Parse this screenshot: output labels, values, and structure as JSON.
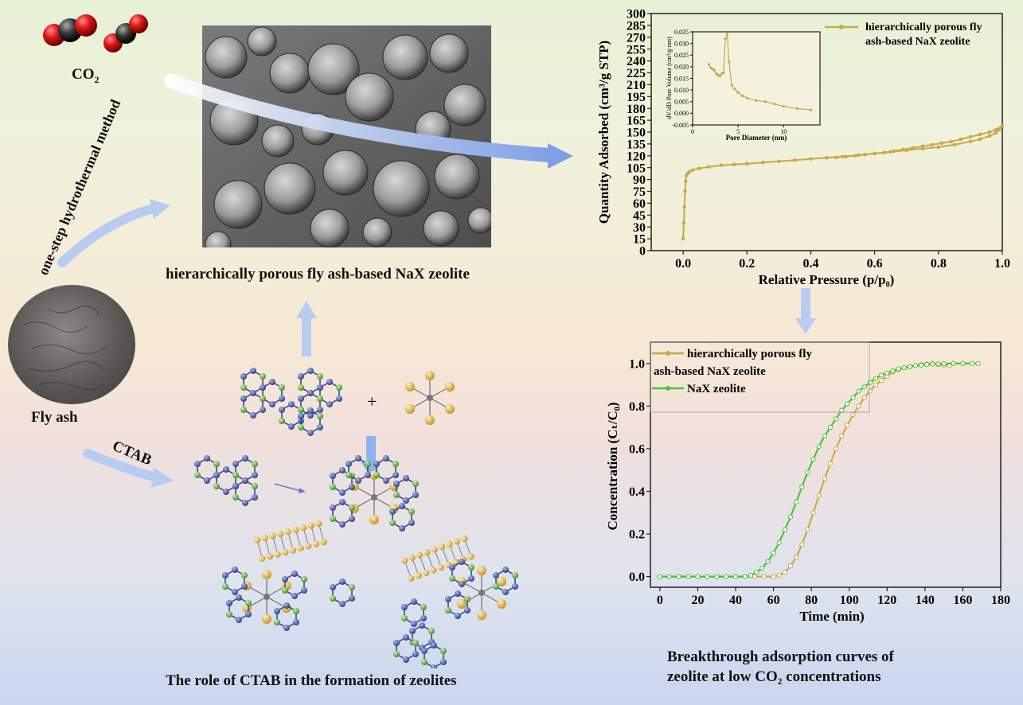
{
  "co2_label": {
    "base": "CO",
    "sub": "2"
  },
  "sem_caption": "hierarchically porous fly ash-based NaX zeolite",
  "process_label": "one-step hydrothermal method",
  "fly_ash_label": "Fly ash",
  "ctab_label": "CTAB",
  "plus_sign": "+",
  "ctab_role_caption": "The role of CTAB in the formation of zeolites",
  "breakthrough_caption": [
    "Breakthrough adsorption curves of",
    "zeolite at low CO₂ concentrations"
  ],
  "colors": {
    "gold": "#c9a94a",
    "green": "#4cc23a",
    "arrow": "#9fb9ec"
  },
  "chart_data": [
    {
      "type": "line",
      "id": "isotherm",
      "xlabel": "Relative Pressure (p/p₀)",
      "ylabel": "Quantity Adsorbed (cm³/g STP)",
      "xlim": [
        -0.1,
        1.0
      ],
      "ylim": [
        0,
        300
      ],
      "xticks": [
        0.0,
        0.2,
        0.4,
        0.6,
        0.8,
        1.0
      ],
      "xtick_labels": [
        "0.0",
        "0.2",
        "0.4",
        "0.6",
        "0.8",
        "1.0"
      ],
      "yticks": [
        0,
        15,
        30,
        45,
        60,
        75,
        90,
        105,
        120,
        135,
        150,
        165,
        180,
        195,
        210,
        225,
        240,
        255,
        270,
        285,
        300
      ],
      "ytick_labels": [
        "0",
        "15",
        "30",
        "45",
        "60",
        "75",
        "90",
        "105",
        "120",
        "135",
        "150",
        "165",
        "180",
        "195",
        "210",
        "225",
        "240",
        "255",
        "270",
        "285",
        "300"
      ],
      "legend": {
        "position": "top-right",
        "lines": [
          "hierarchically porous fly",
          "ash-based NaX zeolite"
        ]
      },
      "series": [
        {
          "name": "hierarchically porous fly ash-based NaX zeolite",
          "color": "#c9a94a",
          "x": [
            0.0,
            0.002,
            0.004,
            0.006,
            0.008,
            0.01,
            0.015,
            0.02,
            0.03,
            0.05,
            0.08,
            0.12,
            0.16,
            0.2,
            0.25,
            0.3,
            0.35,
            0.4,
            0.45,
            0.5,
            0.55,
            0.6,
            0.65,
            0.7,
            0.75,
            0.8,
            0.85,
            0.9,
            0.93,
            0.96,
            0.98,
            0.99,
            1.0
          ],
          "y": [
            15,
            35,
            55,
            75,
            88,
            95,
            98,
            100,
            102,
            104,
            106,
            108,
            109,
            110,
            111.5,
            113,
            114.5,
            116,
            117.5,
            119,
            121,
            123,
            125,
            127,
            129,
            131,
            134,
            138,
            141,
            145,
            149,
            153,
            158
          ]
        },
        {
          "name": "desorption",
          "color": "#c9a94a",
          "x": [
            1.0,
            0.98,
            0.96,
            0.93,
            0.9,
            0.87,
            0.84,
            0.81,
            0.78,
            0.75,
            0.72,
            0.69,
            0.66,
            0.63,
            0.6,
            0.57,
            0.54,
            0.51,
            0.48,
            0.45
          ],
          "y": [
            158,
            153,
            150,
            147,
            144,
            141,
            138,
            136,
            134,
            132,
            130,
            128,
            126,
            124,
            123,
            121.5,
            120,
            119,
            118,
            117.5
          ]
        }
      ]
    },
    {
      "type": "line",
      "id": "pore-inset",
      "xlabel": "Pore Diameter (nm)",
      "ylabel": "dV/dD Pore Volume (cm³/g·nm)",
      "xlim": [
        0,
        14
      ],
      "ylim": [
        -0.005,
        0.035
      ],
      "xticks": [
        0,
        5,
        10
      ],
      "xtick_labels": [
        "0",
        "5",
        "10"
      ],
      "yticks": [
        -0.005,
        0.0,
        0.005,
        0.01,
        0.015,
        0.02,
        0.025,
        0.03,
        0.035
      ],
      "ytick_labels": [
        "-0.005",
        "0.000",
        "0.005",
        "0.010",
        "0.015",
        "0.020",
        "0.025",
        "0.030",
        "0.035"
      ],
      "series": [
        {
          "name": "",
          "color": "#c9a94a",
          "x": [
            1.8,
            2.0,
            2.2,
            2.4,
            2.6,
            2.8,
            3.0,
            3.2,
            3.4,
            3.6,
            3.8,
            4.0,
            4.3,
            4.6,
            5.0,
            5.5,
            6.0,
            7.0,
            8.0,
            9.0,
            10.0,
            11.5,
            13.0
          ],
          "y": [
            0.021,
            0.0195,
            0.019,
            0.0185,
            0.017,
            0.0165,
            0.016,
            0.017,
            0.0175,
            0.032,
            0.034,
            0.022,
            0.012,
            0.0105,
            0.009,
            0.0075,
            0.0065,
            0.0055,
            0.005,
            0.004,
            0.003,
            0.002,
            0.0015
          ]
        }
      ]
    },
    {
      "type": "line",
      "id": "breakthrough",
      "xlabel": "Time (min)",
      "ylabel": "Concentration (Cₜ/C₀)",
      "xlim": [
        -5,
        180
      ],
      "ylim": [
        -0.05,
        1.1
      ],
      "xticks": [
        0,
        20,
        40,
        60,
        80,
        100,
        120,
        140,
        160,
        180
      ],
      "xtick_labels": [
        "0",
        "20",
        "40",
        "60",
        "80",
        "100",
        "120",
        "140",
        "160",
        "180"
      ],
      "yticks": [
        0.0,
        0.2,
        0.4,
        0.6,
        0.8,
        1.0
      ],
      "ytick_labels": [
        "0.0",
        "0.2",
        "0.4",
        "0.6",
        "0.8",
        "1.0"
      ],
      "legend": {
        "position": "top-left",
        "lines": [
          "hierarchically porous fly",
          "ash-based NaX zeolite",
          "NaX zeolite"
        ]
      },
      "series": [
        {
          "name": "hierarchically porous fly ash-based NaX zeolite",
          "color": "#c9a94a",
          "x": [
            0,
            5,
            10,
            15,
            20,
            25,
            30,
            35,
            40,
            45,
            50,
            55,
            60,
            63,
            66,
            69,
            72,
            75,
            78,
            81,
            84,
            87,
            90,
            93,
            96,
            99,
            102,
            105,
            108,
            111,
            114,
            117,
            120,
            123,
            126,
            129,
            132,
            135,
            138,
            141,
            144,
            147,
            150,
            153
          ],
          "y": [
            0,
            0,
            0,
            0,
            0,
            0,
            0,
            0,
            0,
            0,
            0,
            0,
            0,
            0.005,
            0.02,
            0.05,
            0.09,
            0.15,
            0.22,
            0.3,
            0.38,
            0.46,
            0.53,
            0.6,
            0.66,
            0.71,
            0.76,
            0.8,
            0.84,
            0.87,
            0.9,
            0.92,
            0.94,
            0.96,
            0.97,
            0.98,
            0.985,
            0.99,
            0.995,
            0.998,
            1.0,
            0.995,
            0.99,
            0.99
          ]
        },
        {
          "name": "NaX zeolite",
          "color": "#4cc23a",
          "x": [
            0,
            5,
            10,
            15,
            20,
            25,
            30,
            35,
            40,
            45,
            48,
            51,
            54,
            57,
            60,
            63,
            66,
            69,
            72,
            75,
            78,
            81,
            84,
            87,
            90,
            93,
            96,
            99,
            102,
            105,
            108,
            111,
            114,
            117,
            120,
            123,
            126,
            129,
            132,
            135,
            138,
            141,
            144,
            147,
            150,
            155,
            160,
            165,
            168
          ],
          "y": [
            0,
            0,
            0,
            0,
            0,
            0,
            0,
            0,
            0,
            0,
            0.005,
            0.02,
            0.04,
            0.07,
            0.11,
            0.16,
            0.22,
            0.28,
            0.35,
            0.42,
            0.49,
            0.55,
            0.61,
            0.66,
            0.7,
            0.74,
            0.78,
            0.81,
            0.84,
            0.87,
            0.89,
            0.91,
            0.93,
            0.945,
            0.955,
            0.965,
            0.975,
            0.98,
            0.985,
            0.99,
            0.992,
            0.995,
            0.997,
            0.998,
            0.999,
            1.0,
            1.0,
            1.0,
            1.0
          ]
        }
      ]
    }
  ]
}
